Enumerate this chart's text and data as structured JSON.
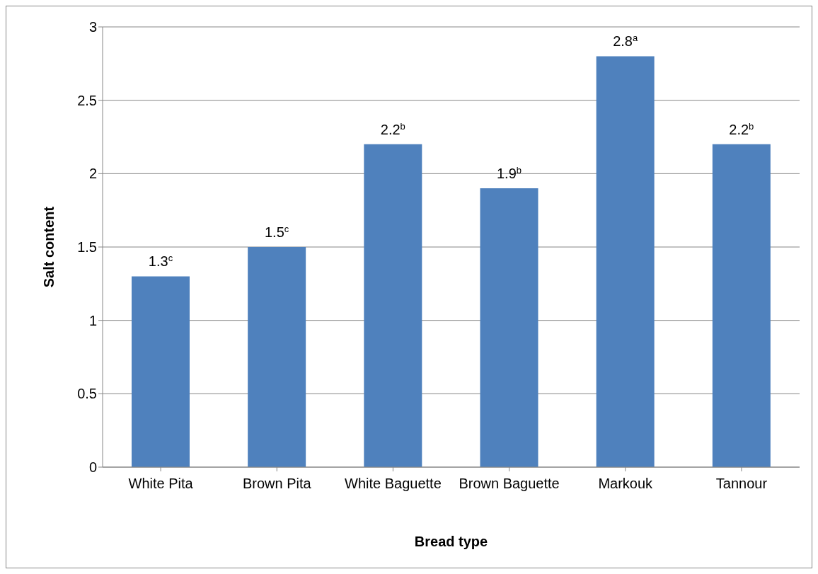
{
  "chart_data": {
    "type": "bar",
    "xlabel": "Bread type",
    "ylabel": "Salt content",
    "categories": [
      "White Pita",
      "Brown Pita",
      "White Baguette",
      "Brown Baguette",
      "Markouk",
      "Tannour"
    ],
    "values": [
      1.3,
      1.5,
      2.2,
      1.9,
      2.8,
      2.2
    ],
    "value_labels": [
      "1.3$^{c}$",
      "1.5$^{c}$",
      "2.2$^{b}$",
      "1.9$^{b}$",
      "2.8$^{a}$",
      "2.2$^{b}$"
    ],
    "color": "#4f81bd",
    "ylim": [
      0,
      3
    ],
    "yticks": [
      0,
      0.5,
      1,
      1.5,
      2,
      2.5,
      3
    ],
    "grid": "y"
  }
}
